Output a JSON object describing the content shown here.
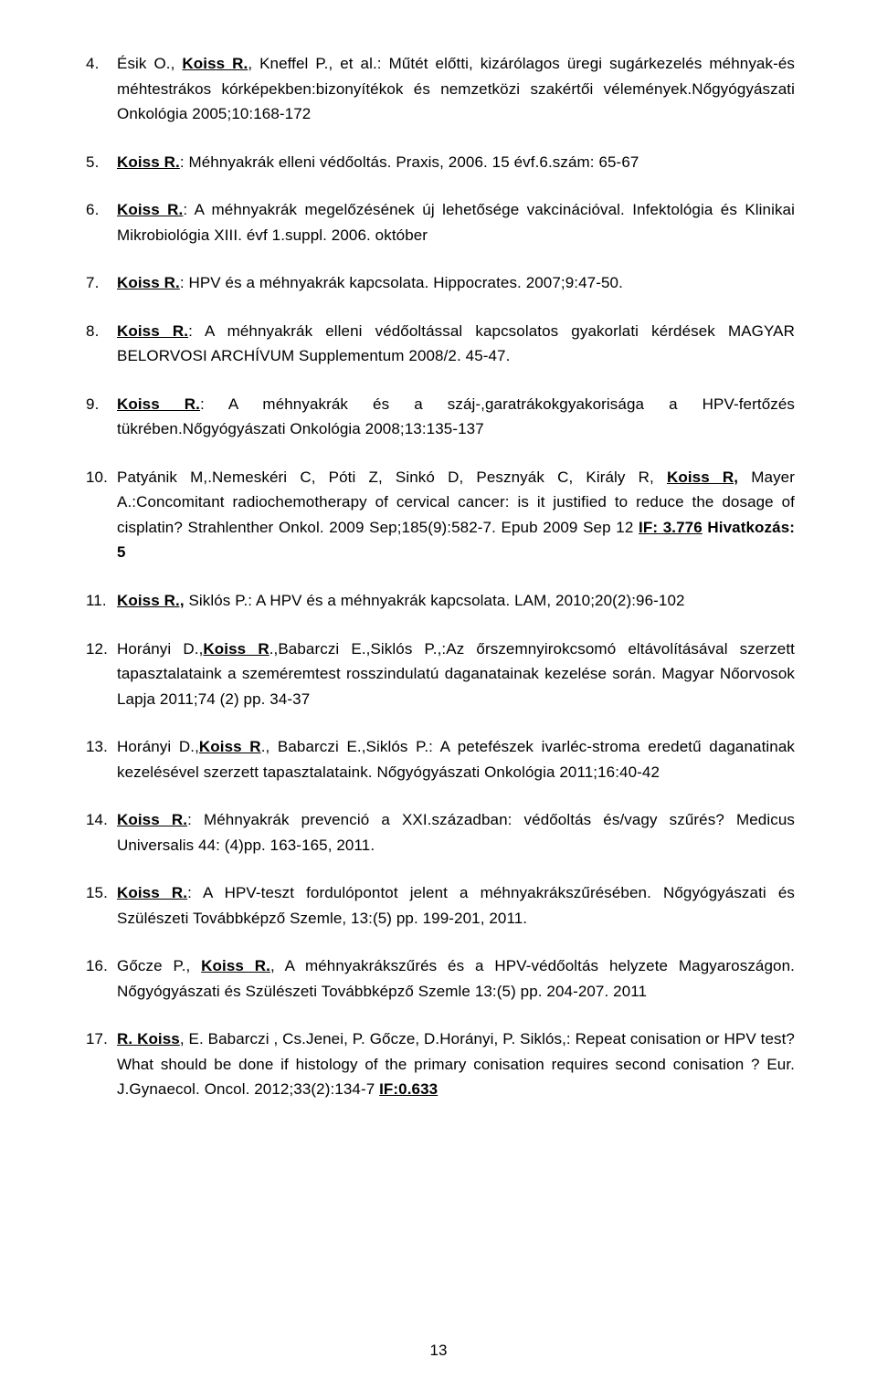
{
  "page_number": "13",
  "items": [
    {
      "prefix": "",
      "auth_bu": "",
      "auth_plain": "Ésik O., ",
      "auth2_bu": "Koiss R.",
      "rest_plain": ", Kneffel P., et al.: Műtét előtti, kizárólagos üregi sugárkezelés méhnyak-és méhtestrákos kórképekben:bizonyítékok és nemzetközi szakértői vélemények.Nőgyógyászati Onkológia 2005;10:168-172"
    },
    {
      "auth_bu": "Koiss R.",
      "rest_plain": ": Méhnyakrák elleni védőoltás. Praxis, 2006. 15 évf.6.szám: 65-67"
    },
    {
      "auth_bu": "Koiss R.",
      "rest_plain": ": A méhnyakrák megelőzésének új lehetősége vakcinációval. Infektológia és Klinikai Mikrobiológia XIII. évf 1.suppl. 2006. október"
    },
    {
      "auth_bu": "Koiss R.",
      "rest_plain": ": HPV és a méhnyakrák kapcsolata. Hippocrates. 2007;9:47-50."
    },
    {
      "auth_bu": "Koiss R.",
      "rest_plain": ": A méhnyakrák elleni védőoltással kapcsolatos       gyakorlati kérdések MAGYAR BELORVOSI ARCHÍVUM Supplementum 2008/2.  45-47."
    },
    {
      "auth_bu": "Koiss R.",
      "rest_plain": ": A méhnyakrák és a száj-,garatrákokgyakorisága a HPV-fertőzés tükrében.Nőgyógyászati Onkológia 2008;13:135-137"
    },
    {
      "p10_a": "Patyánik M,.Nemeskéri C, Póti Z, Sinkó D, Pesznyák C, Király R, ",
      "p10_b_bu": "Koiss R,",
      "p10_c": " Mayer A.:Concomitant radiochemotherapy of cervical cancer: is it justified to reduce the dosage of cisplatin? Strahlenther Onkol. 2009 Sep;185(9):582-7. Epub 2009 Sep 12   ",
      "p10_d_bu": "IF: 3.776",
      "p10_e_b": " Hivatkozás: 5"
    },
    {
      "auth_bu": "Koiss R.,",
      "rest_plain": " Siklós P.: A HPV és a méhnyakrák kapcsolata. LAM, 2010;20(2):96-102"
    },
    {
      "p12_a": "Horányi D.,",
      "p12_b_bu": "Koiss R",
      "p12_c": ".,Babarczi E.,Siklós P.,:Az őrszemnyirokcsomó eltávolításával szerzett tapasztalataink a szeméremtest rosszindulatú daganatainak kezelése során. Magyar Nőorvosok Lapja 2011;74 (2) pp. 34-37"
    },
    {
      "p13_a": "Horányi D.,",
      "p13_b_bu": "Koiss R",
      "p13_c": "., Babarczi E.,Siklós P.: A petefészek ivarléc-stroma eredetű daganatinak kezelésével szerzett tapasztalataink. Nőgyógyászati Onkológia 2011;16:40-42"
    },
    {
      "auth_bu": "Koiss R.",
      "rest_plain": ": Méhnyakrák prevenció a XXI.században: védőoltás és/vagy szűrés? Medicus Universalis  44: (4)pp. 163-165, 2011."
    },
    {
      "auth_bu": "Koiss R.",
      "rest_plain": ": A HPV-teszt fordulópontot jelent a méhnyakrákszűrésében.  Nőgyógyászati és Szülészeti Továbbképző Szemle, 13:(5) pp. 199-201, 2011."
    },
    {
      "p16_a": "Gőcze P., ",
      "p16_b_bu": "Koiss R.",
      "p16_c": ", A méhnyakrákszűrés és a HPV-védőoltás helyzete Magyaroszágon. Nőgyógyászati és Szülészeti Továbbképző Szemle 13:(5) pp. 204-207. 2011"
    },
    {
      "p17_a_bu": "R. Koiss",
      "p17_b": ", E. Babarczi , Cs.Jenei, P. Gőcze, D.Horányi, P. Siklós,: Repeat conisation or  HPV test? What should be done if  histology of the primary conisation requires second conisation ? Eur. J.Gynaecol. Oncol. 2012;33(2):134-7 ",
      "p17_c_bu": "IF:0.633"
    }
  ]
}
